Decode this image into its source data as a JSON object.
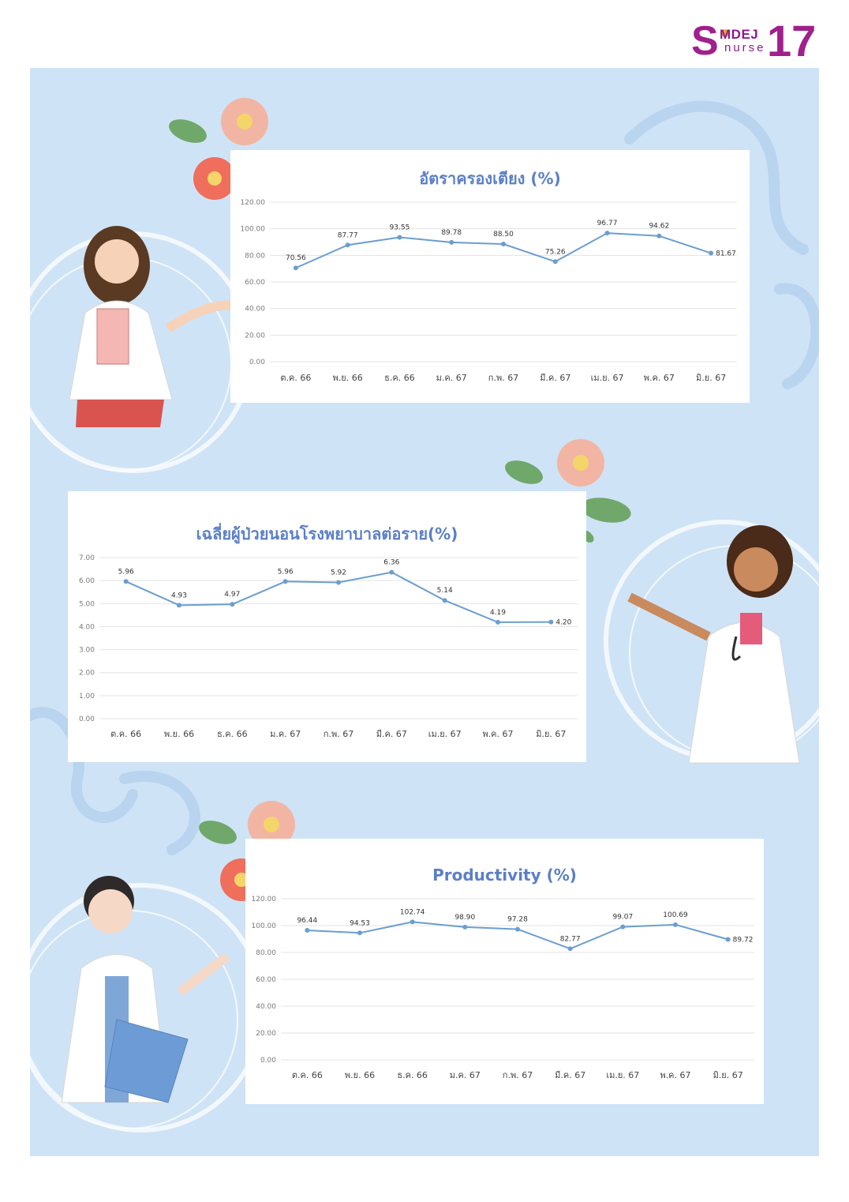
{
  "logo": {
    "s": "S",
    "mdej": "MDEJ",
    "nurse": "nurse",
    "number": "17"
  },
  "colors": {
    "background": "#cfe3f6",
    "line": "#6a9ecf",
    "title": "#5b7fc7",
    "grid": "#e3e3e3"
  },
  "chart_data": [
    {
      "type": "line",
      "title": "อัตราครองเตียง (%)",
      "categories": [
        "ต.ค. 66",
        "พ.ย. 66",
        "ธ.ค. 66",
        "ม.ค. 67",
        "ก.พ. 67",
        "มี.ค. 67",
        "เม.ย. 67",
        "พ.ค. 67",
        "มิ.ย. 67"
      ],
      "values": [
        70.56,
        87.77,
        93.55,
        89.78,
        88.5,
        75.26,
        96.77,
        94.62,
        81.67
      ],
      "data_labels": [
        "70.56",
        "87.77",
        "93.55",
        "89.78",
        "88.50",
        "75.26",
        "96.77",
        "94.62",
        "81.67"
      ],
      "y_ticks": [
        "0.00",
        "20.00",
        "40.00",
        "60.00",
        "80.00",
        "100.00",
        "120.00"
      ],
      "ylim": [
        0,
        120
      ],
      "grid": true
    },
    {
      "type": "line",
      "title": "เฉลี่ยผู้ป่วยนอนโรงพยาบาลต่อราย(%)",
      "categories": [
        "ต.ค. 66",
        "พ.ย. 66",
        "ธ.ค. 66",
        "ม.ค. 67",
        "ก.พ. 67",
        "มี.ค. 67",
        "เม.ย. 67",
        "พ.ค. 67",
        "มิ.ย. 67"
      ],
      "values": [
        5.96,
        4.93,
        4.97,
        5.96,
        5.92,
        6.36,
        5.14,
        4.19,
        4.2
      ],
      "data_labels": [
        "5.96",
        "4.93",
        "4.97",
        "5.96",
        "5.92",
        "6.36",
        "5.14",
        "4.19",
        "4.20"
      ],
      "y_ticks": [
        "0.00",
        "1.00",
        "2.00",
        "3.00",
        "4.00",
        "5.00",
        "6.00",
        "7.00"
      ],
      "ylim": [
        0,
        7
      ],
      "grid": true
    },
    {
      "type": "line",
      "title": "Productivity (%)",
      "categories": [
        "ต.ค. 66",
        "พ.ย. 66",
        "ธ.ค. 66",
        "ม.ค. 67",
        "ก.พ. 67",
        "มี.ค. 67",
        "เม.ย. 67",
        "พ.ค. 67",
        "มิ.ย. 67"
      ],
      "values": [
        96.44,
        94.53,
        102.74,
        98.9,
        97.28,
        82.77,
        99.07,
        100.69,
        89.72
      ],
      "data_labels": [
        "96.44",
        "94.53",
        "102.74",
        "98.90",
        "97.28",
        "82.77",
        "99.07",
        "100.69",
        "89.72"
      ],
      "y_ticks": [
        "0.00",
        "20.00",
        "40.00",
        "60.00",
        "80.00",
        "100.00",
        "120.00"
      ],
      "ylim": [
        0,
        120
      ],
      "grid": true
    }
  ]
}
